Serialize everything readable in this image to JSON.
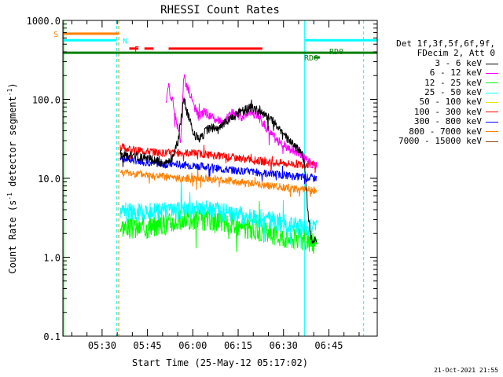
{
  "chart_data": {
    "type": "line",
    "title": "RHESSI Count Rates",
    "xlabel": "Start Time (25-May-12 05:17:02)",
    "ylabel": "Count Rate (s⁻¹ detector segment⁻¹)",
    "ylabel_parts": {
      "text": "Count Rate (s",
      "sup1": "-1",
      "mid": " detector segment",
      "sup2": "-1",
      "end": ")"
    },
    "ylog": true,
    "ylim": [
      0.1,
      1000
    ],
    "xlim_minutes": [
      317.03,
      421.0
    ],
    "x_ticks": [
      {
        "min": 330,
        "label": "05:30"
      },
      {
        "min": 345,
        "label": "05:45"
      },
      {
        "min": 360,
        "label": "06:00"
      },
      {
        "min": 375,
        "label": "06:15"
      },
      {
        "min": 390,
        "label": "06:30"
      },
      {
        "min": 405,
        "label": "06:45"
      }
    ],
    "y_ticks": [
      {
        "v": 0.1,
        "label": "0.1"
      },
      {
        "v": 1,
        "label": "1.0"
      },
      {
        "v": 10,
        "label": "10.0"
      },
      {
        "v": 100,
        "label": "100.0"
      },
      {
        "v": 1000,
        "label": "1000.0"
      }
    ],
    "legend": {
      "header": [
        "Det 1f,3f,5f,6f,9f,",
        "FDecim 2, Att 0"
      ],
      "entries": [
        {
          "label": "3 - 6 keV",
          "color": "#000000"
        },
        {
          "label": "6 - 12 keV",
          "color": "#ff00ff"
        },
        {
          "label": "12 - 25 keV",
          "color": "#00ff00"
        },
        {
          "label": "25 - 50 keV",
          "color": "#00ffff"
        },
        {
          "label": "50 - 100 keV",
          "color": "#e8e800"
        },
        {
          "label": "100 - 300 keV",
          "color": "#ff0000"
        },
        {
          "label": "300 - 800 keV",
          "color": "#0000ff"
        },
        {
          "label": "800 - 7000 keV",
          "color": "#ff8000"
        },
        {
          "label": "7000 - 15000 keV",
          "color": "#8b4513"
        }
      ]
    },
    "data_start_min": 336,
    "data_end_min": 401,
    "series": [
      {
        "name": "3 - 6 keV",
        "color": "#000000",
        "noise": 0.06,
        "seed": 1,
        "points": [
          [
            336,
            20
          ],
          [
            342,
            19
          ],
          [
            347,
            17
          ],
          [
            349,
            16
          ],
          [
            351,
            15
          ],
          [
            352,
            17
          ],
          [
            353,
            18
          ],
          [
            355,
            28
          ],
          [
            356,
            50
          ],
          [
            357,
            110
          ],
          [
            358,
            70
          ],
          [
            359,
            55
          ],
          [
            360,
            40
          ],
          [
            362,
            30
          ],
          [
            364,
            38
          ],
          [
            366,
            45
          ],
          [
            368,
            40
          ],
          [
            370,
            48
          ],
          [
            373,
            58
          ],
          [
            376,
            70
          ],
          [
            379,
            78
          ],
          [
            382,
            70
          ],
          [
            385,
            60
          ],
          [
            388,
            45
          ],
          [
            391,
            32
          ],
          [
            394,
            25
          ],
          [
            396,
            22
          ],
          [
            397,
            15
          ],
          [
            398,
            4
          ],
          [
            399,
            1.8
          ],
          [
            401,
            1.5
          ]
        ]
      },
      {
        "name": "6 - 12 keV",
        "color": "#ff00ff",
        "noise": 0.06,
        "seed": 2,
        "points": [
          [
            351,
            90
          ],
          [
            352,
            150
          ],
          [
            353,
            100
          ],
          [
            355,
            45
          ],
          [
            356,
            30
          ],
          [
            357,
            200
          ],
          [
            358,
            150
          ],
          [
            359,
            120
          ],
          [
            360,
            90
          ],
          [
            362,
            60
          ],
          [
            364,
            70
          ],
          [
            366,
            60
          ],
          [
            368,
            55
          ],
          [
            370,
            50
          ],
          [
            373,
            68
          ],
          [
            376,
            60
          ],
          [
            379,
            70
          ],
          [
            382,
            58
          ],
          [
            385,
            40
          ],
          [
            388,
            30
          ],
          [
            391,
            25
          ],
          [
            394,
            22
          ],
          [
            396,
            20
          ],
          [
            398,
            16
          ],
          [
            401,
            15
          ]
        ]
      },
      {
        "name": "12 - 25 keV",
        "color": "#00ff00",
        "noise": 0.14,
        "seed": 3,
        "points": [
          [
            336,
            2.5
          ],
          [
            340,
            2.3
          ],
          [
            345,
            2.4
          ],
          [
            350,
            2.6
          ],
          [
            355,
            2.9
          ],
          [
            360,
            3.0
          ],
          [
            365,
            3.0
          ],
          [
            370,
            2.8
          ],
          [
            375,
            2.5
          ],
          [
            380,
            2.2
          ],
          [
            385,
            2.0
          ],
          [
            390,
            1.8
          ],
          [
            395,
            1.7
          ],
          [
            398,
            1.6
          ],
          [
            401,
            1.5
          ]
        ]
      },
      {
        "name": "25 - 50 keV",
        "color": "#00ffff",
        "noise": 0.12,
        "seed": 4,
        "points": [
          [
            336,
            4.0
          ],
          [
            340,
            3.8
          ],
          [
            345,
            3.7
          ],
          [
            350,
            3.8
          ],
          [
            355,
            3.9
          ],
          [
            360,
            4.0
          ],
          [
            365,
            4.0
          ],
          [
            370,
            3.7
          ],
          [
            375,
            3.5
          ],
          [
            380,
            3.2
          ],
          [
            385,
            3.0
          ],
          [
            390,
            2.7
          ],
          [
            395,
            2.5
          ],
          [
            398,
            2.4
          ],
          [
            401,
            2.3
          ]
        ]
      },
      {
        "name": "100 - 300 keV",
        "color": "#ff0000",
        "noise": 0.05,
        "seed": 6,
        "points": [
          [
            336,
            25
          ],
          [
            340,
            23
          ],
          [
            345,
            22
          ],
          [
            350,
            21
          ],
          [
            355,
            21
          ],
          [
            360,
            21
          ],
          [
            365,
            20
          ],
          [
            370,
            19
          ],
          [
            375,
            18
          ],
          [
            380,
            17
          ],
          [
            385,
            16
          ],
          [
            390,
            15.5
          ],
          [
            395,
            15
          ],
          [
            401,
            15
          ]
        ]
      },
      {
        "name": "300 - 800 keV",
        "color": "#0000ff",
        "noise": 0.05,
        "seed": 7,
        "points": [
          [
            336,
            18
          ],
          [
            340,
            17
          ],
          [
            345,
            16
          ],
          [
            350,
            15
          ],
          [
            355,
            15
          ],
          [
            360,
            14.5
          ],
          [
            365,
            14
          ],
          [
            370,
            13
          ],
          [
            375,
            12.5
          ],
          [
            380,
            12
          ],
          [
            385,
            11.5
          ],
          [
            390,
            11
          ],
          [
            395,
            10.5
          ],
          [
            401,
            10
          ]
        ]
      },
      {
        "name": "800 - 7000 keV",
        "color": "#ff8000",
        "noise": 0.05,
        "seed": 8,
        "points": [
          [
            336,
            12
          ],
          [
            340,
            11.5
          ],
          [
            345,
            11
          ],
          [
            350,
            10.5
          ],
          [
            355,
            10
          ],
          [
            360,
            10
          ],
          [
            365,
            9.8
          ],
          [
            370,
            9.5
          ],
          [
            375,
            9
          ],
          [
            380,
            8.5
          ],
          [
            385,
            8
          ],
          [
            390,
            7.7
          ],
          [
            395,
            7.3
          ],
          [
            401,
            7
          ]
        ]
      }
    ],
    "markers": {
      "S": {
        "label": "S",
        "color": "#ff8000",
        "y": 680,
        "x0": 317.03,
        "x1": 335.5
      },
      "N": {
        "label": "N",
        "color": "#00ffff",
        "y": 560,
        "segments": [
          [
            317.03,
            334.8
          ],
          [
            397,
            421
          ]
        ]
      },
      "F": {
        "label": "F",
        "color": "#ff0000",
        "y": 440,
        "segments": [
          [
            339,
            342
          ],
          [
            344,
            347
          ],
          [
            352,
            383
          ]
        ]
      },
      "RD0": {
        "label": "RD0",
        "color": "#008000",
        "y": 390
      },
      "RD6": {
        "label": "RD6",
        "color": "#008000",
        "y": 340,
        "x0": 400,
        "x1": 402
      },
      "green_bar": {
        "color": "#008000",
        "y": 390,
        "x0": 317.03,
        "x1": 421
      }
    },
    "vlines": [
      {
        "min": 317.3,
        "color": "#00ff00",
        "style": "solid"
      },
      {
        "min": 334.8,
        "color": "#00ffff",
        "style": "dashed"
      },
      {
        "min": 335.5,
        "color": "#ff8000",
        "style": "dashed"
      },
      {
        "min": 397.0,
        "color": "#00ffff",
        "style": "solid"
      },
      {
        "min": 416.5,
        "color": "#00ffff",
        "style": "dashed"
      }
    ]
  },
  "timestamp": "21-Oct-2021 21:55"
}
